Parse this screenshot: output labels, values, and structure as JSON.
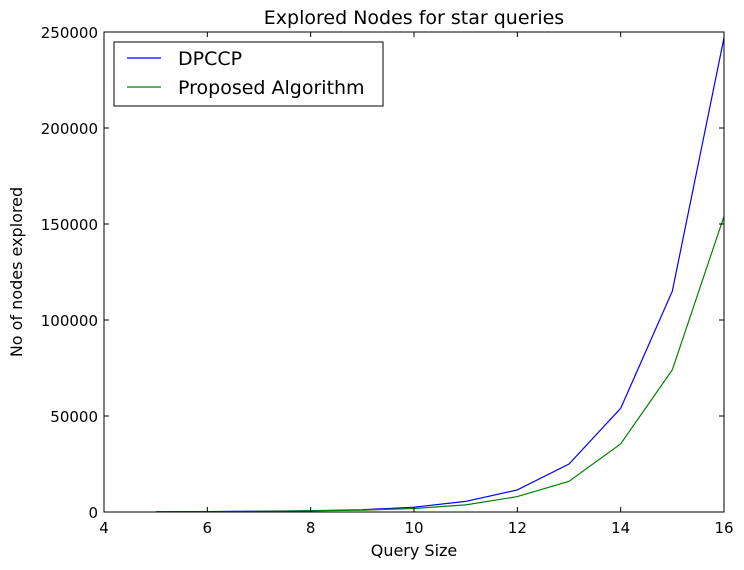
{
  "chart_data": {
    "type": "line",
    "title": "Explored Nodes for star queries",
    "xlabel": "Query Size",
    "ylabel": "No of nodes explored",
    "xlim": [
      4,
      16
    ],
    "ylim": [
      0,
      250000
    ],
    "xticks": [
      "4",
      "6",
      "8",
      "10",
      "12",
      "14",
      "16"
    ],
    "yticks": [
      "0",
      "50000",
      "100000",
      "150000",
      "200000",
      "250000"
    ],
    "grid": false,
    "legend_position": "top-left",
    "x": [
      5,
      6,
      7,
      8,
      9,
      10,
      11,
      12,
      13,
      14,
      15,
      16
    ],
    "series": [
      {
        "name": "DPCCP",
        "color": "#0000ff",
        "values": [
          100,
          200,
          400,
          700,
          1200,
          2500,
          5500,
          11500,
          25000,
          54000,
          115000,
          247000
        ]
      },
      {
        "name": "Proposed Algorithm",
        "color": "#008000",
        "values": [
          100,
          200,
          350,
          600,
          1000,
          1800,
          3700,
          8000,
          16000,
          35500,
          74000,
          154000
        ]
      }
    ]
  }
}
